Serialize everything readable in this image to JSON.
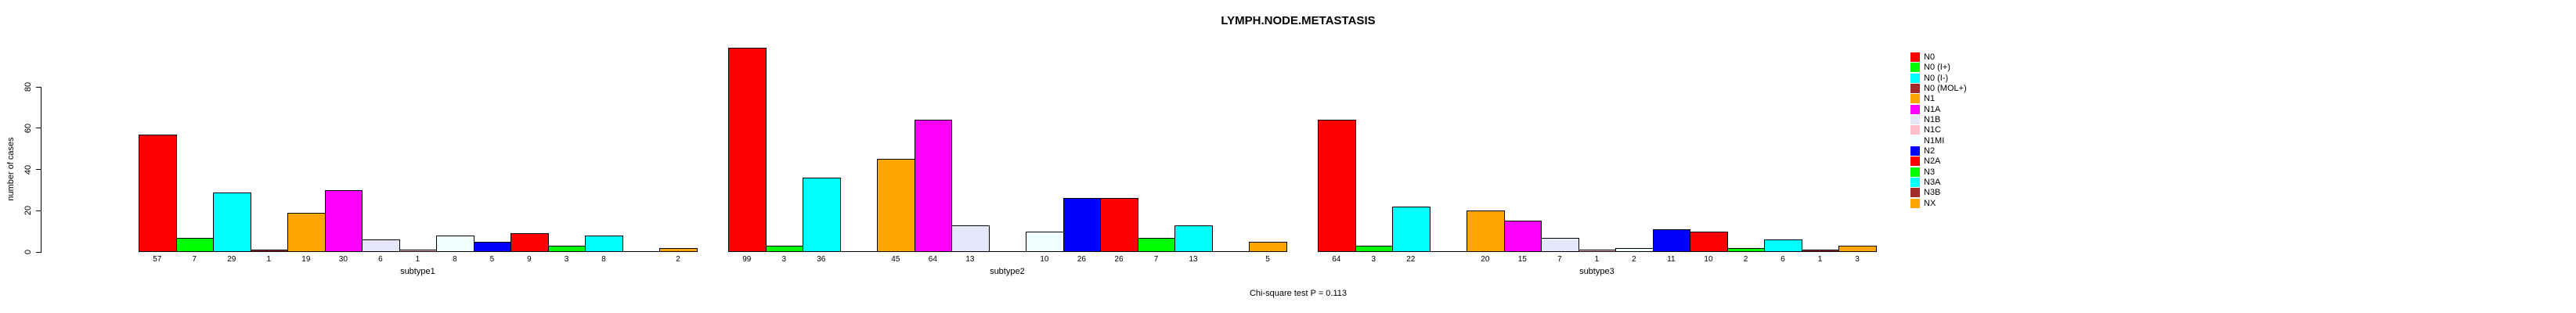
{
  "title": "LYMPH.NODE.METASTASIS",
  "footer": "Chi-square test P = 0.113",
  "y_axis": {
    "label": "number of cases",
    "ticks": [
      0,
      20,
      40,
      60,
      80
    ]
  },
  "legend": {
    "entries": [
      {
        "label": "N0",
        "color": "#FF0000"
      },
      {
        "label": "N0 (I+)",
        "color": "#00FF00"
      },
      {
        "label": "N0 (I-)",
        "color": "#00FFFF"
      },
      {
        "label": "N0 (MOL+)",
        "color": "#A52A2A"
      },
      {
        "label": "N1",
        "color": "#FFA500"
      },
      {
        "label": "N1A",
        "color": "#FF00FF"
      },
      {
        "label": "N1B",
        "color": "#E6E6FA"
      },
      {
        "label": "N1C",
        "color": "#FFC0CB"
      },
      {
        "label": "N1MI",
        "color": "#F0FFFF"
      },
      {
        "label": "N2",
        "color": "#0000FF"
      },
      {
        "label": "N2A",
        "color": "#FF0000"
      },
      {
        "label": "N3",
        "color": "#00FF00"
      },
      {
        "label": "N3A",
        "color": "#00FFFF"
      },
      {
        "label": "N3B",
        "color": "#A52A2A"
      },
      {
        "label": "NX",
        "color": "#FFA500"
      }
    ]
  },
  "chart_data": {
    "type": "bar",
    "title": "LYMPH.NODE.METASTASIS",
    "xlabel": "",
    "ylabel": "number of cases",
    "ylim": [
      0,
      80
    ],
    "yticks": [
      0,
      20,
      40,
      60,
      80
    ],
    "grid": false,
    "legend_position": "right",
    "categories": [
      "N0",
      "N0 (I+)",
      "N0 (I-)",
      "N0 (MOL+)",
      "N1",
      "N1A",
      "N1B",
      "N1C",
      "N1MI",
      "N2",
      "N2A",
      "N3",
      "N3A",
      "N3B",
      "NX"
    ],
    "colors": [
      "#FF0000",
      "#00FF00",
      "#00FFFF",
      "#A52A2A",
      "#FFA500",
      "#FF00FF",
      "#E6E6FA",
      "#FFC0CB",
      "#F0FFFF",
      "#0000FF",
      "#FF0000",
      "#00FF00",
      "#00FFFF",
      "#A52A2A",
      "#FFA500"
    ],
    "groups": [
      {
        "label": "subtype1",
        "values": [
          57,
          7,
          29,
          1,
          19,
          30,
          6,
          1,
          8,
          5,
          9,
          3,
          8,
          0,
          2
        ]
      },
      {
        "label": "subtype2",
        "values": [
          99,
          3,
          36,
          0,
          45,
          64,
          13,
          0,
          10,
          26,
          26,
          7,
          13,
          0,
          5
        ]
      },
      {
        "label": "subtype3",
        "values": [
          64,
          3,
          22,
          0,
          20,
          15,
          7,
          1,
          2,
          11,
          10,
          2,
          6,
          1,
          3
        ]
      }
    ],
    "annotation": "Chi-square test P = 0.113",
    "value_labels_shown": true,
    "zero_values_unlabeled": true
  }
}
